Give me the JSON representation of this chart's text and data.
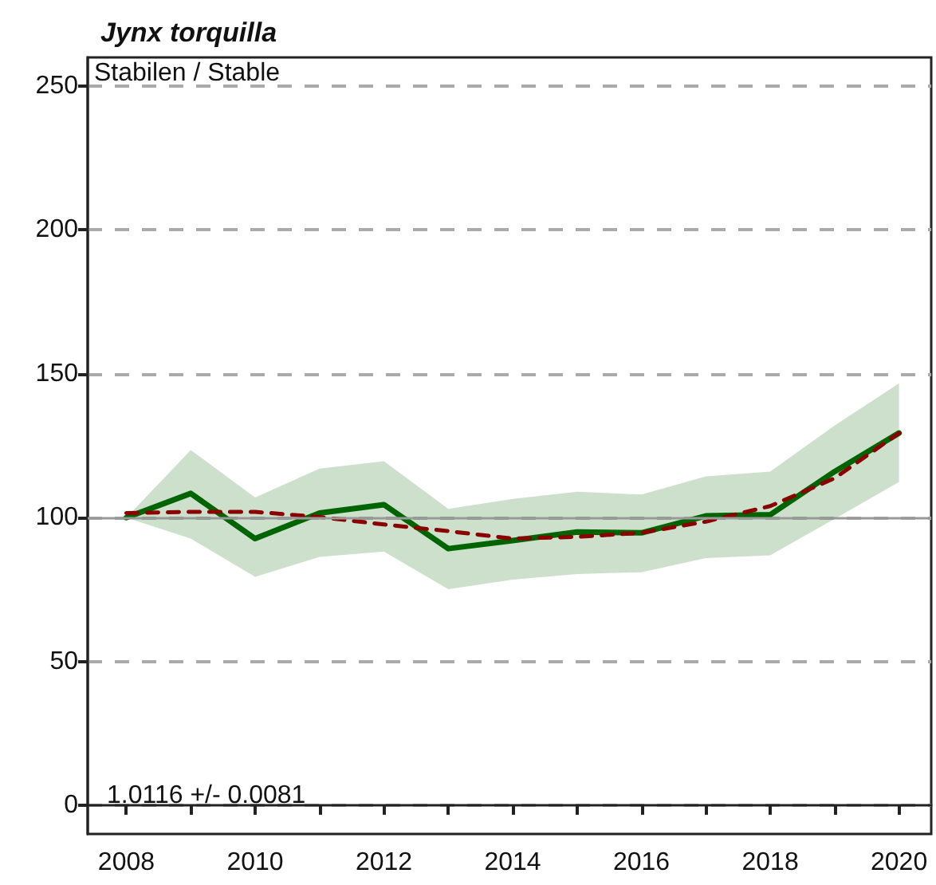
{
  "chart_data": {
    "type": "line",
    "title": "Jynx torquilla",
    "subtitle": "Stabilen / Stable",
    "annotations": [
      "1.0116 +/- 0.0081"
    ],
    "x": [
      2008,
      2009,
      2010,
      2011,
      2012,
      2013,
      2014,
      2015,
      2016,
      2017,
      2018,
      2019,
      2020
    ],
    "series": [
      {
        "color": "#006400",
        "line_style": "solid",
        "values": [
          100,
          108.4,
          92.7,
          101.6,
          104.5,
          89.2,
          92,
          95,
          94.7,
          100.6,
          101,
          116,
          129.4
        ],
        "lower": [
          100,
          92.7,
          79.4,
          86.3,
          88.2,
          75.1,
          78.4,
          80.4,
          81,
          85.9,
          86.9,
          99.6,
          112.4
        ],
        "upper": [
          100,
          123.5,
          107,
          117,
          119.6,
          103,
          106.5,
          109,
          108,
          114.3,
          116,
          132,
          146.7
        ]
      },
      {
        "color": "#8b0000",
        "line_style": "dashed",
        "values": [
          101.6,
          102,
          102,
          100.2,
          97.6,
          95.3,
          92.7,
          93.3,
          94.7,
          98.6,
          104,
          113.7,
          129.4
        ]
      }
    ],
    "xlim": [
      2007.4,
      2020.5
    ],
    "ylim": [
      -10,
      260
    ],
    "xticks": [
      2008,
      {
        "value": 2009,
        "label": null
      },
      2010,
      {
        "value": 2011,
        "label": null
      },
      2012,
      {
        "value": 2013,
        "label": null
      },
      2014,
      {
        "value": 2015,
        "label": null
      },
      2016,
      {
        "value": 2017,
        "label": null
      },
      2018,
      {
        "value": 2019,
        "label": null
      },
      2020
    ],
    "yticks": [
      0,
      50,
      100,
      150,
      200,
      250
    ],
    "grid": "y",
    "marker": "none",
    "ref_lines": [
      {
        "axis": "y",
        "value": 100,
        "color": "#999999",
        "line_style": "solid"
      }
    ]
  }
}
